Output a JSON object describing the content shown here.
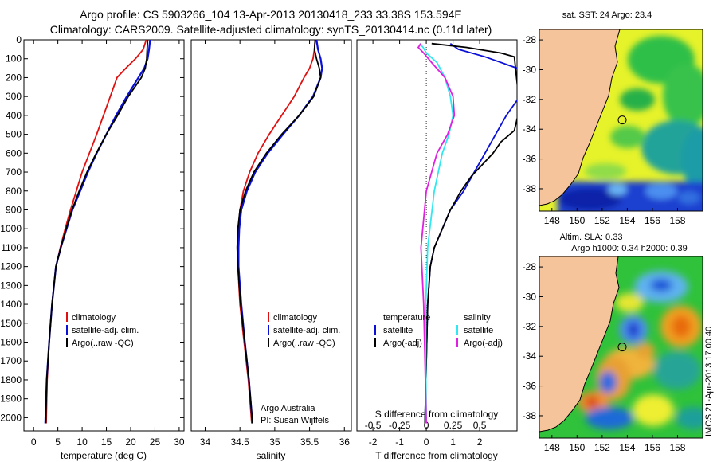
{
  "header": {
    "title_line1": "Argo profile: CS 5903266_104 13-Apr-2013 20130418_233 33.38S 153.594E",
    "title_line2": "Climatology: CARS2009. Satellite-adjusted climatology: synTS_20130414.nc (0.11d later)"
  },
  "colors": {
    "climatology": "#e01010",
    "satellite": "#0a10d8",
    "argo": "#000000",
    "satellite_salinity": "#30e8f0",
    "argo_salinity_diff": "#e020e0",
    "land": "#f5c49a"
  },
  "chart_data": [
    {
      "type": "line",
      "id": "temperature",
      "xlabel": "temperature (deg C)",
      "xlim": [
        -2,
        31
      ],
      "xticks": [
        "0",
        "5",
        "10",
        "15",
        "20",
        "25",
        "30"
      ],
      "ylim": [
        0,
        2070
      ],
      "yticks": [
        "0",
        "100",
        "200",
        "300",
        "400",
        "500",
        "600",
        "700",
        "800",
        "900",
        "1000",
        "1100",
        "1200",
        "1300",
        "1400",
        "1500",
        "1600",
        "1700",
        "1800",
        "1900",
        "2000"
      ],
      "legend": [
        "climatology",
        "satellite-adj. clim.",
        "Argo(..raw -QC)"
      ],
      "series": [
        {
          "name": "climatology",
          "x": [
            23.2,
            22.6,
            21.0,
            19.0,
            17.2,
            15.8,
            14.4,
            13.0,
            11.5,
            10.0,
            8.8,
            7.6,
            6.5,
            5.5,
            4.6,
            3.8,
            3.2,
            2.8,
            2.6
          ],
          "y": [
            0,
            50,
            100,
            150,
            200,
            300,
            400,
            500,
            600,
            700,
            800,
            900,
            1000,
            1100,
            1200,
            1400,
            1600,
            1800,
            2030
          ]
        },
        {
          "name": "satellite-adj. clim.",
          "x": [
            24.0,
            23.8,
            23.5,
            22.8,
            21.6,
            19.2,
            17.0,
            15.0,
            13.0,
            11.2,
            9.6,
            8.0,
            6.8,
            5.6,
            4.6,
            3.8,
            3.2,
            2.7,
            2.4
          ],
          "y": [
            0,
            50,
            100,
            150,
            200,
            300,
            400,
            500,
            600,
            700,
            800,
            900,
            1000,
            1100,
            1200,
            1400,
            1600,
            1800,
            2030
          ]
        },
        {
          "name": "Argo(..raw -QC)",
          "x": [
            23.5,
            23.4,
            23.3,
            23.0,
            22.2,
            19.5,
            17.3,
            15.0,
            12.9,
            11.0,
            9.4,
            7.9,
            6.7,
            5.6,
            4.6,
            3.8,
            3.2,
            2.7,
            2.5
          ],
          "y": [
            0,
            50,
            100,
            150,
            200,
            300,
            400,
            500,
            600,
            700,
            800,
            900,
            1000,
            1100,
            1200,
            1400,
            1600,
            1800,
            2030
          ]
        }
      ]
    },
    {
      "type": "line",
      "id": "salinity",
      "xlabel": "salinity",
      "xlim": [
        33.8,
        36.1
      ],
      "xticks": [
        "34",
        "34.5",
        "35",
        "35.5",
        "36"
      ],
      "ylim": [
        0,
        2070
      ],
      "legend": [
        "climatology",
        "satellite-adj. clim.",
        "Argo(..raw -QC)"
      ],
      "annotation": [
        "Argo Australia",
        "PI: Susan Wijffels"
      ],
      "series": [
        {
          "name": "climatology",
          "x": [
            35.58,
            35.57,
            35.55,
            35.5,
            35.42,
            35.28,
            35.1,
            34.92,
            34.76,
            34.64,
            34.55,
            34.5,
            34.48,
            34.47,
            34.47,
            34.5,
            34.56,
            34.62,
            34.67
          ],
          "y": [
            0,
            50,
            100,
            150,
            200,
            300,
            400,
            500,
            600,
            700,
            800,
            900,
            1000,
            1100,
            1200,
            1400,
            1600,
            1800,
            2030
          ]
        },
        {
          "name": "satellite-adj. clim.",
          "x": [
            35.6,
            35.62,
            35.66,
            35.68,
            35.66,
            35.55,
            35.35,
            35.12,
            34.9,
            34.72,
            34.6,
            34.52,
            34.49,
            34.48,
            34.48,
            34.52,
            34.57,
            34.63,
            34.68
          ],
          "y": [
            0,
            50,
            100,
            150,
            200,
            300,
            400,
            500,
            600,
            700,
            800,
            900,
            1000,
            1100,
            1200,
            1400,
            1600,
            1800,
            2030
          ]
        },
        {
          "name": "Argo(..raw -QC)",
          "x": [
            35.58,
            35.57,
            35.6,
            35.64,
            35.66,
            35.56,
            35.35,
            35.1,
            34.88,
            34.7,
            34.58,
            34.5,
            34.47,
            34.46,
            34.47,
            34.51,
            34.57,
            34.63,
            34.68
          ],
          "y": [
            0,
            50,
            100,
            150,
            200,
            300,
            400,
            500,
            600,
            700,
            800,
            900,
            1000,
            1100,
            1200,
            1400,
            1600,
            1800,
            2030
          ]
        }
      ]
    },
    {
      "type": "line",
      "id": "difference",
      "xlabel": "T difference from climatology",
      "xlabel_top": "S difference from climatology",
      "xlim": [
        -2.6,
        3.4
      ],
      "xticks": [
        "-2",
        "-1",
        "0",
        "1",
        "2"
      ],
      "xticks_s": [
        "-0.5",
        "-0.25",
        "0",
        "0.25",
        "0.5"
      ],
      "ylim": [
        0,
        2070
      ],
      "legend_left": [
        "temperature",
        "satellite",
        "Argo(-adj)"
      ],
      "legend_right": [
        "salinity",
        "satellite",
        "Argo(-adj)"
      ],
      "series": [
        {
          "name": "temperature satellite",
          "x": [
            0.9,
            1.2,
            2.2,
            3.4,
            3.6,
            3.5,
            3.0,
            2.6,
            2.2,
            1.8,
            1.4,
            0.9,
            0.6,
            0.3,
            0.15,
            0.05,
            0.0,
            -0.05
          ],
          "y": [
            20,
            50,
            90,
            150,
            210,
            300,
            400,
            500,
            600,
            700,
            800,
            900,
            1000,
            1100,
            1200,
            1400,
            1700,
            2030
          ]
        },
        {
          "name": "temperature Argo(-adj)",
          "x": [
            0.2,
            1.5,
            2.8,
            3.3,
            3.5,
            3.3,
            2.8,
            2.5,
            2.1,
            1.7,
            1.3,
            0.9,
            0.6,
            0.3,
            0.15,
            0.05,
            0.0,
            -0.05
          ],
          "y": [
            20,
            40,
            70,
            90,
            360,
            480,
            540,
            600,
            660,
            720,
            800,
            900,
            1000,
            1100,
            1200,
            1400,
            1700,
            2030
          ]
        },
        {
          "name": "salinity satellite",
          "x": [
            -0.25,
            -0.12,
            0.0,
            0.4,
            0.7,
            0.9,
            1.0,
            0.85,
            0.6,
            0.3,
            0.05,
            -0.02,
            -0.02,
            0.0
          ],
          "y": [
            20,
            40,
            70,
            120,
            200,
            300,
            400,
            500,
            600,
            800,
            1100,
            1400,
            1700,
            2030
          ]
        },
        {
          "name": "salinity Argo(-adj)",
          "x": [
            -0.2,
            -0.3,
            -0.1,
            0.2,
            0.7,
            1.0,
            1.05,
            0.8,
            0.4,
            0.0,
            -0.2,
            -0.1,
            -0.05,
            0.0
          ],
          "y": [
            20,
            40,
            70,
            120,
            200,
            300,
            400,
            500,
            600,
            800,
            1100,
            1400,
            1700,
            2030
          ]
        }
      ]
    },
    {
      "type": "heatmap",
      "id": "sst_map",
      "title": "sat. SST: 24  Argo: 23.4",
      "xticks": [
        "148",
        "150",
        "152",
        "154",
        "156",
        "158"
      ],
      "yticks": [
        "-28",
        "-30",
        "-32",
        "-34",
        "-36",
        "-38"
      ],
      "xlim": [
        147,
        160
      ],
      "ylim": [
        -39.5,
        -27.3
      ],
      "profile_location": {
        "lon": 153.594,
        "lat": -33.38
      }
    },
    {
      "type": "heatmap",
      "id": "sla_map",
      "title_line1": "Altim. SLA: 0.33",
      "title_line2": "Argo h1000: 0.34  h2000: 0.39",
      "xticks": [
        "148",
        "150",
        "152",
        "154",
        "156",
        "158"
      ],
      "yticks": [
        "-28",
        "-30",
        "-32",
        "-34",
        "-36",
        "-38"
      ],
      "xlim": [
        147,
        160
      ],
      "ylim": [
        -39.5,
        -27.3
      ],
      "profile_location": {
        "lon": 153.594,
        "lat": -33.38
      }
    }
  ],
  "footer": {
    "imos_stamp": "IMOS 21-Apr-2013 17:00:40"
  }
}
